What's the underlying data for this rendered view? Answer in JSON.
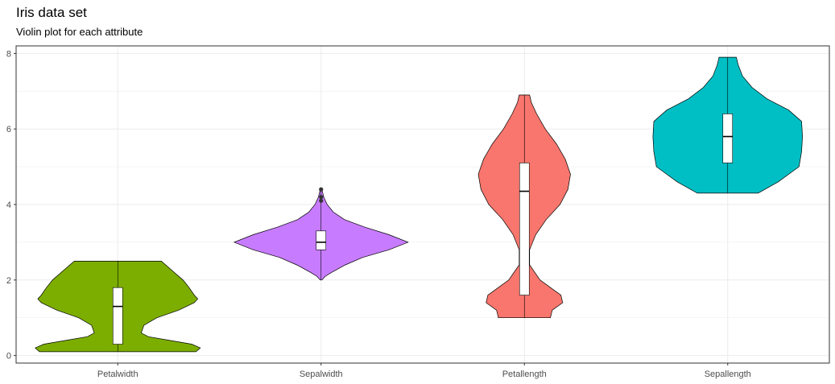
{
  "chart_data": {
    "type": "violin",
    "title": "Iris data set",
    "subtitle": "Violin plot for each attribute",
    "xlabel": "",
    "ylabel": "",
    "ylim": [
      -0.2,
      8.2
    ],
    "y_ticks": [
      0,
      2,
      4,
      6,
      8
    ],
    "grid": true,
    "legend": "none",
    "categories": [
      "Petalwidth",
      "Sepalwidth",
      "Petallength",
      "Sepallength"
    ],
    "series": [
      {
        "category": "Petalwidth",
        "color": "#7CAE00",
        "min": 0.1,
        "q1": 0.3,
        "median": 1.3,
        "q3": 1.8,
        "max": 2.5,
        "outliers": [],
        "density": [
          [
            0.1,
            0.9
          ],
          [
            0.2,
            0.95
          ],
          [
            0.3,
            0.85
          ],
          [
            0.4,
            0.6
          ],
          [
            0.5,
            0.35
          ],
          [
            0.6,
            0.27
          ],
          [
            0.8,
            0.3
          ],
          [
            1.0,
            0.45
          ],
          [
            1.2,
            0.7
          ],
          [
            1.4,
            0.88
          ],
          [
            1.5,
            0.92
          ],
          [
            1.6,
            0.88
          ],
          [
            1.8,
            0.82
          ],
          [
            2.0,
            0.75
          ],
          [
            2.2,
            0.65
          ],
          [
            2.4,
            0.55
          ],
          [
            2.5,
            0.5
          ]
        ]
      },
      {
        "category": "Sepalwidth",
        "color": "#C77CFF",
        "min": 2.0,
        "q1": 2.8,
        "median": 3.0,
        "q3": 3.3,
        "max": 4.4,
        "outliers": [
          4.1,
          4.2,
          4.4
        ],
        "density": [
          [
            2.0,
            0.01
          ],
          [
            2.1,
            0.05
          ],
          [
            2.2,
            0.12
          ],
          [
            2.4,
            0.28
          ],
          [
            2.6,
            0.48
          ],
          [
            2.8,
            0.78
          ],
          [
            3.0,
            1.0
          ],
          [
            3.2,
            0.78
          ],
          [
            3.4,
            0.5
          ],
          [
            3.6,
            0.27
          ],
          [
            3.8,
            0.14
          ],
          [
            4.0,
            0.07
          ],
          [
            4.2,
            0.03
          ],
          [
            4.4,
            0.01
          ]
        ]
      },
      {
        "category": "Petallength",
        "color": "#F8766D",
        "min": 1.0,
        "q1": 1.6,
        "median": 4.35,
        "q3": 5.1,
        "max": 6.9,
        "outliers": [],
        "density": [
          [
            1.0,
            0.3
          ],
          [
            1.2,
            0.32
          ],
          [
            1.4,
            0.44
          ],
          [
            1.6,
            0.42
          ],
          [
            1.8,
            0.3
          ],
          [
            2.0,
            0.18
          ],
          [
            2.4,
            0.06
          ],
          [
            2.8,
            0.06
          ],
          [
            3.2,
            0.13
          ],
          [
            3.6,
            0.25
          ],
          [
            4.0,
            0.41
          ],
          [
            4.4,
            0.5
          ],
          [
            4.8,
            0.53
          ],
          [
            5.2,
            0.47
          ],
          [
            5.6,
            0.37
          ],
          [
            6.0,
            0.24
          ],
          [
            6.4,
            0.14
          ],
          [
            6.7,
            0.08
          ],
          [
            6.9,
            0.06
          ]
        ]
      },
      {
        "category": "Sepallength",
        "color": "#00BFC4",
        "min": 4.3,
        "q1": 5.1,
        "median": 5.8,
        "q3": 6.4,
        "max": 7.9,
        "outliers": [],
        "density": [
          [
            4.3,
            0.35
          ],
          [
            4.6,
            0.58
          ],
          [
            5.0,
            0.82
          ],
          [
            5.4,
            0.85
          ],
          [
            5.8,
            0.86
          ],
          [
            6.2,
            0.85
          ],
          [
            6.5,
            0.7
          ],
          [
            6.8,
            0.45
          ],
          [
            7.1,
            0.28
          ],
          [
            7.4,
            0.17
          ],
          [
            7.7,
            0.12
          ],
          [
            7.9,
            0.1
          ]
        ]
      }
    ]
  }
}
